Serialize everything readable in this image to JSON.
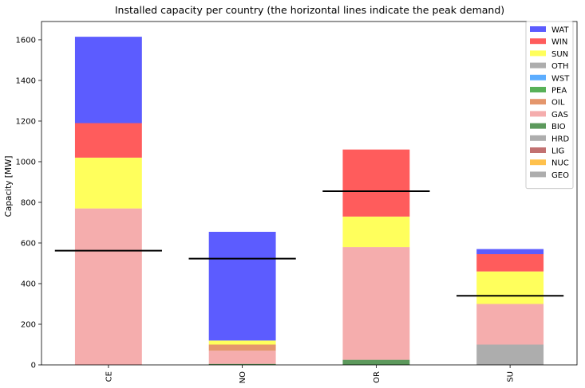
{
  "chart_data": {
    "type": "bar",
    "stacked": true,
    "title": "Installed capacity per country (the horizontal lines indicate the peak demand)",
    "xlabel": "",
    "ylabel": "Capacity [MW]",
    "ylim": [
      0,
      1690
    ],
    "yticks": [
      0,
      200,
      400,
      600,
      800,
      1000,
      1200,
      1400,
      1600
    ],
    "categories": [
      "CE",
      "NO",
      "OR",
      "SU"
    ],
    "grid": false,
    "legend_position": "top-right",
    "legend_order": [
      "WAT",
      "WIN",
      "SUN",
      "OTH",
      "WST",
      "PEA",
      "OIL",
      "GAS",
      "BIO",
      "HRD",
      "LIG",
      "NUC",
      "GEO"
    ],
    "series": [
      {
        "name": "GEO",
        "color": "#999999",
        "values": [
          0,
          0,
          0,
          100
        ]
      },
      {
        "name": "NUC",
        "color": "#ffb21f",
        "values": [
          0,
          0,
          0,
          0
        ]
      },
      {
        "name": "LIG",
        "color": "#b34d4d",
        "values": [
          0,
          0,
          0,
          0
        ]
      },
      {
        "name": "HRD",
        "color": "#999999",
        "values": [
          0,
          0,
          0,
          0
        ]
      },
      {
        "name": "BIO",
        "color": "#338033",
        "values": [
          0,
          5,
          25,
          0
        ]
      },
      {
        "name": "GAS",
        "color": "#f29999",
        "values": [
          770,
          65,
          555,
          200
        ]
      },
      {
        "name": "OIL",
        "color": "#dd7c47",
        "values": [
          0,
          30,
          0,
          0
        ]
      },
      {
        "name": "PEA",
        "color": "#2e9e2e",
        "values": [
          0,
          0,
          0,
          0
        ]
      },
      {
        "name": "WST",
        "color": "#3399ff",
        "values": [
          0,
          0,
          0,
          0
        ]
      },
      {
        "name": "OTH",
        "color": "#999999",
        "values": [
          0,
          0,
          0,
          0
        ]
      },
      {
        "name": "SUN",
        "color": "#ffff33",
        "values": [
          250,
          20,
          150,
          160
        ]
      },
      {
        "name": "WIN",
        "color": "#ff3333",
        "values": [
          170,
          0,
          330,
          85
        ]
      },
      {
        "name": "WAT",
        "color": "#3333ff",
        "values": [
          425,
          535,
          0,
          25
        ]
      }
    ],
    "peak_demand": [
      562,
      523,
      855,
      340
    ]
  }
}
